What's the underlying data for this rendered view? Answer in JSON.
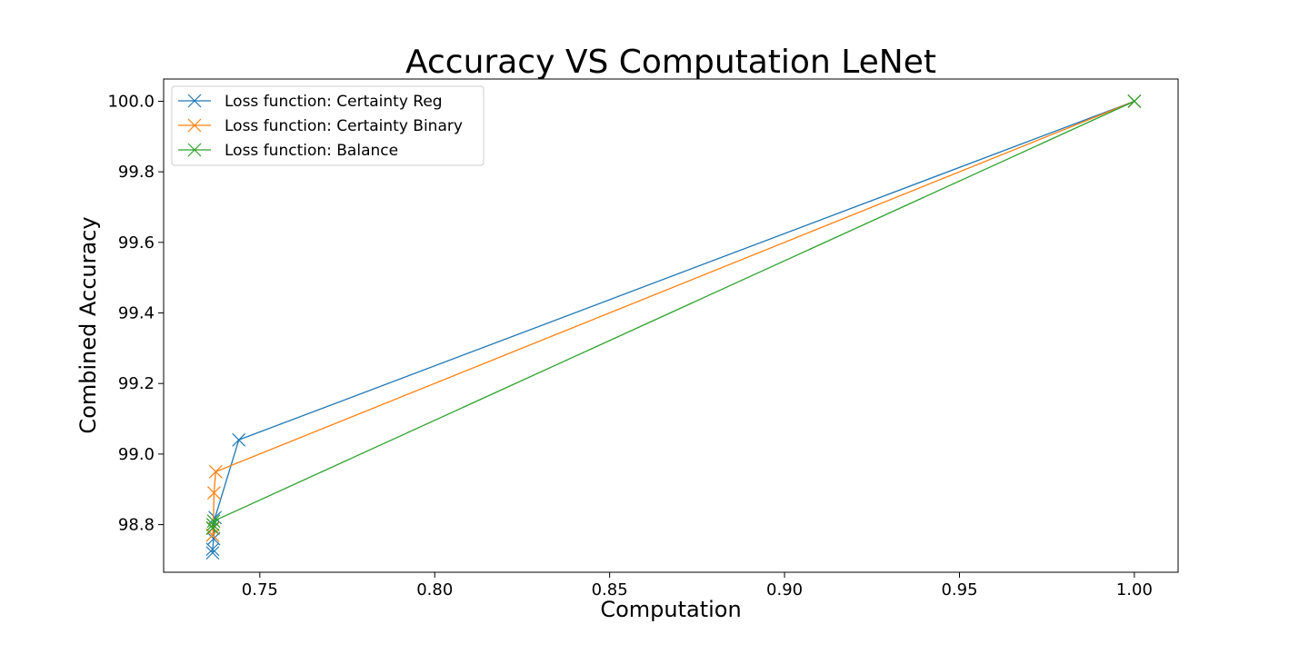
{
  "chart_data": {
    "type": "line",
    "title": "Accuracy VS Computation LeNet",
    "xlabel": "Computation",
    "ylabel": "Combined Accuracy",
    "xlim": [
      0.7225,
      1.0125
    ],
    "ylim": [
      98.665,
      100.063
    ],
    "xticks": [
      "0.75",
      "0.80",
      "0.85",
      "0.90",
      "0.95",
      "1.00"
    ],
    "yticks": [
      "98.8",
      "99.0",
      "99.2",
      "99.4",
      "99.6",
      "99.8",
      "100.0"
    ],
    "grid": false,
    "legend_position": "upper-left",
    "marker": "x",
    "series": [
      {
        "name": "Loss function: Certainty Reg",
        "color": "#1f77b4",
        "points": [
          [
            0.7365,
            98.72
          ],
          [
            0.7365,
            98.73
          ],
          [
            0.7368,
            98.76
          ],
          [
            0.7372,
            98.82
          ],
          [
            0.744,
            99.04
          ],
          [
            1.0,
            100.0
          ]
        ]
      },
      {
        "name": "Loss function: Certainty Binary",
        "color": "#ff7f0e",
        "points": [
          [
            0.7365,
            98.77
          ],
          [
            0.7367,
            98.79
          ],
          [
            0.7369,
            98.89
          ],
          [
            0.7374,
            98.95
          ],
          [
            1.0,
            100.0
          ]
        ]
      },
      {
        "name": "Loss function: Balance",
        "color": "#2ca02c",
        "points": [
          [
            0.7365,
            98.79
          ],
          [
            0.7366,
            98.8
          ],
          [
            0.7368,
            98.81
          ],
          [
            1.0,
            100.0
          ]
        ]
      }
    ]
  }
}
